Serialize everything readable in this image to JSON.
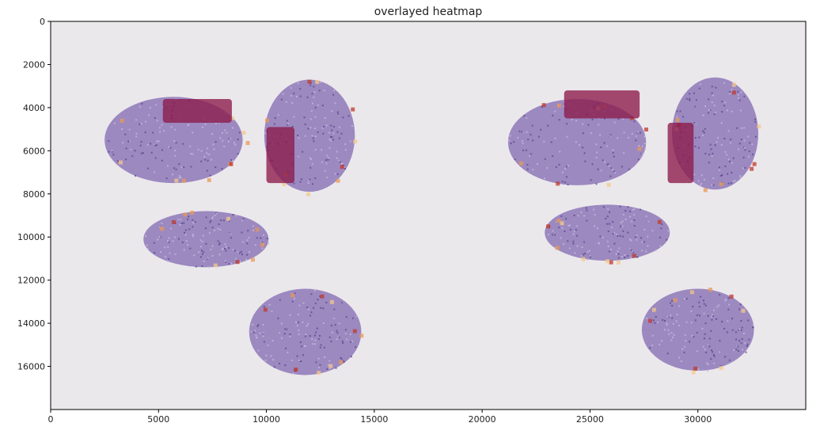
{
  "chart_data": {
    "type": "heatmap",
    "title": "overlayed heatmap",
    "xlabel": "",
    "ylabel": "",
    "xlim": [
      0,
      35000
    ],
    "ylim": [
      18000,
      0
    ],
    "y_axis_inverted": true,
    "x_ticks": [
      0,
      5000,
      10000,
      15000,
      20000,
      25000,
      30000
    ],
    "x_tick_labels": [
      "0",
      "5000",
      "10000",
      "15000",
      "20000",
      "25000",
      "30000"
    ],
    "y_ticks": [
      0,
      2000,
      4000,
      6000,
      8000,
      10000,
      12000,
      14000,
      16000
    ],
    "y_tick_labels": [
      "0",
      "2000",
      "4000",
      "6000",
      "8000",
      "10000",
      "12000",
      "14000",
      "16000"
    ],
    "grid": false,
    "background_color": "#ebe8ec",
    "tissue_color": "#8e78b8",
    "hot_colors": [
      "#8c1a4a",
      "#c0392b",
      "#e89a5a",
      "#f3c98b"
    ],
    "tissue_regions": [
      {
        "cx": 5700,
        "cy": 5500,
        "rx": 3200,
        "ry": 2000
      },
      {
        "cx": 12000,
        "cy": 5300,
        "rx": 2100,
        "ry": 2600
      },
      {
        "cx": 7200,
        "cy": 10100,
        "rx": 2900,
        "ry": 1300
      },
      {
        "cx": 11800,
        "cy": 14400,
        "rx": 2600,
        "ry": 2000
      },
      {
        "cx": 24400,
        "cy": 5600,
        "rx": 3200,
        "ry": 2000
      },
      {
        "cx": 30800,
        "cy": 5200,
        "rx": 2000,
        "ry": 2600
      },
      {
        "cx": 25800,
        "cy": 9800,
        "rx": 2900,
        "ry": 1300
      },
      {
        "cx": 30000,
        "cy": 14300,
        "rx": 2600,
        "ry": 1900
      }
    ],
    "hot_regions": [
      {
        "x0": 5200,
        "x1": 8400,
        "y0": 3600,
        "y1": 4700,
        "level": 0
      },
      {
        "x0": 10000,
        "x1": 11300,
        "y0": 4900,
        "y1": 7500,
        "level": 0
      },
      {
        "x0": 23800,
        "x1": 27300,
        "y0": 3200,
        "y1": 4500,
        "level": 0
      },
      {
        "x0": 28600,
        "x1": 29800,
        "y0": 4700,
        "y1": 7500,
        "level": 0
      }
    ]
  }
}
